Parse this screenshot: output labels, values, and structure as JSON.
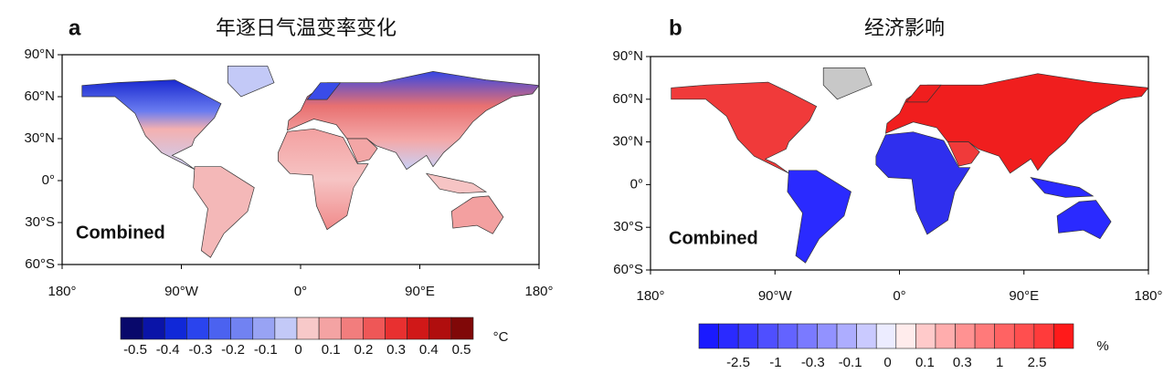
{
  "panels": [
    {
      "label": "a",
      "title": "年逐日气温变率变化",
      "annotation": "Combined",
      "y_axis_labels": [
        "90°N",
        "60°N",
        "30°N",
        "0°",
        "30°S",
        "60°S"
      ],
      "x_axis_labels": [
        "180°",
        "90°W",
        "0°",
        "90°E",
        "180°"
      ],
      "colorbar": {
        "colors": [
          "#08086b",
          "#0a14a8",
          "#1028d8",
          "#2a44ee",
          "#4b62f0",
          "#7182f2",
          "#98a3f4",
          "#c3c9f7",
          "#f7c9c9",
          "#f4a3a3",
          "#f27d7d",
          "#ef5757",
          "#e83030",
          "#d01818",
          "#b00e0e",
          "#800808"
        ],
        "labels": [
          "-0.5",
          "-0.4",
          "-0.3",
          "-0.2",
          "-0.1",
          "0",
          "0.1",
          "0.2",
          "0.3",
          "0.4",
          "0.5"
        ],
        "unit": "°C"
      }
    },
    {
      "label": "b",
      "title": "经济影响",
      "annotation": "Combined",
      "y_axis_labels": [
        "90°N",
        "60°N",
        "30°N",
        "0°",
        "30°S",
        "60°S"
      ],
      "x_axis_labels": [
        "180°",
        "90°W",
        "0°",
        "90°E",
        "180°"
      ],
      "colorbar": {
        "colors": [
          "#1a1aff",
          "#2a2aff",
          "#3b3bff",
          "#4f4fff",
          "#6363ff",
          "#7a7aff",
          "#9292ff",
          "#adadff",
          "#cacaff",
          "#ececff",
          "#ffecec",
          "#ffcaca",
          "#ffadad",
          "#ff9292",
          "#ff7a7a",
          "#ff6363",
          "#ff4f4f",
          "#ff3b3b",
          "#ff1a1a"
        ],
        "labels": [
          "-2.5",
          "-1",
          "-0.3",
          "-0.1",
          "0",
          "0.1",
          "0.3",
          "1",
          "2.5"
        ],
        "unit": "%"
      }
    }
  ]
}
